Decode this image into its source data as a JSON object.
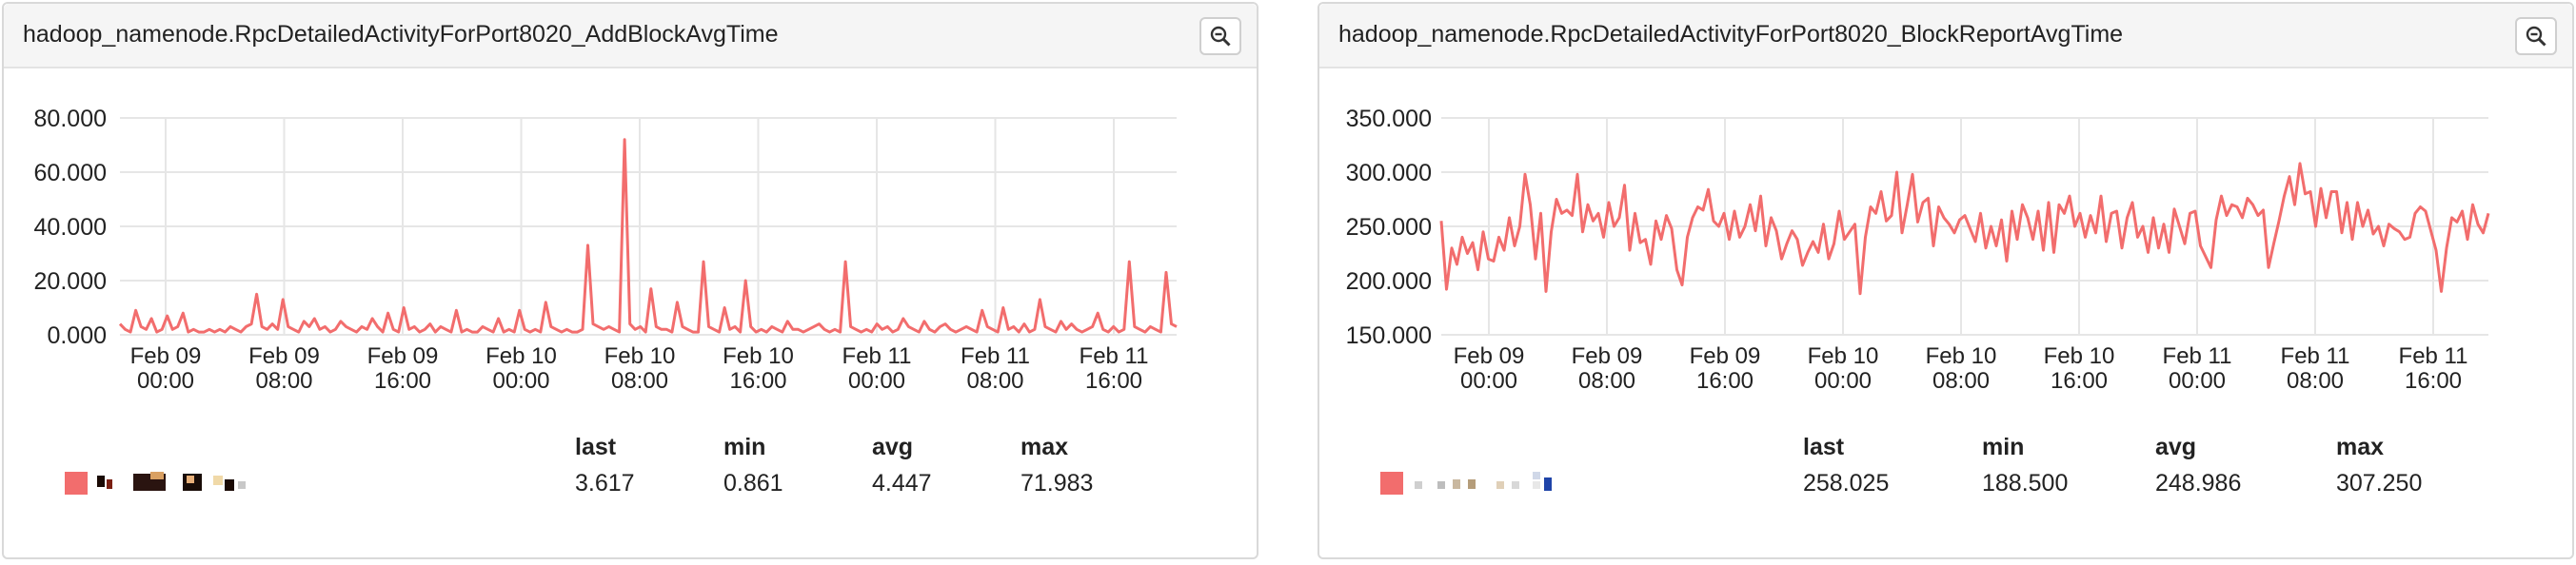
{
  "colors": {
    "series": "#f26d6d",
    "grid": "#e6e6e6",
    "axis_text": "#222222"
  },
  "panels": [
    {
      "title": "hadoop_namenode.RpcDetailedActivityForPort8020_AddBlockAvgTime",
      "zoom_icon": "zoom-out-icon",
      "legend": {
        "masked_label_note": "series name obscured",
        "headers": {
          "last": "last",
          "min": "min",
          "avg": "avg",
          "max": "max"
        },
        "values": {
          "last": "3.617",
          "min": "0.861",
          "avg": "4.447",
          "max": "71.983"
        }
      }
    },
    {
      "title": "hadoop_namenode.RpcDetailedActivityForPort8020_BlockReportAvgTime",
      "zoom_icon": "zoom-out-icon",
      "legend": {
        "masked_label_note": "series name obscured",
        "headers": {
          "last": "last",
          "min": "min",
          "avg": "avg",
          "max": "max"
        },
        "values": {
          "last": "258.025",
          "min": "188.500",
          "avg": "248.986",
          "max": "307.250"
        }
      }
    }
  ],
  "chart_data": [
    {
      "type": "line",
      "title": "hadoop_namenode.RpcDetailedActivityForPort8020_AddBlockAvgTime",
      "xlabel": "",
      "ylabel": "",
      "ylim": [
        0,
        80
      ],
      "y_ticks": [
        "0.000",
        "20.000",
        "40.000",
        "60.000",
        "80.000"
      ],
      "x_ticks": [
        {
          "day": "Feb 09",
          "time": "00:00"
        },
        {
          "day": "Feb 09",
          "time": "08:00"
        },
        {
          "day": "Feb 09",
          "time": "16:00"
        },
        {
          "day": "Feb 10",
          "time": "00:00"
        },
        {
          "day": "Feb 10",
          "time": "08:00"
        },
        {
          "day": "Feb 10",
          "time": "16:00"
        },
        {
          "day": "Feb 11",
          "time": "00:00"
        },
        {
          "day": "Feb 11",
          "time": "08:00"
        },
        {
          "day": "Feb 11",
          "time": "16:00"
        }
      ],
      "grid": true,
      "series": [
        {
          "name": "",
          "values": [
            4,
            2,
            1,
            9,
            3,
            2,
            6,
            1,
            2,
            7,
            2,
            3,
            8,
            1,
            2,
            1,
            1,
            2,
            1,
            2,
            1,
            3,
            2,
            1,
            3,
            4,
            15,
            3,
            2,
            4,
            2,
            13,
            3,
            2,
            1,
            5,
            3,
            6,
            2,
            3,
            1,
            2,
            5,
            3,
            2,
            1,
            3,
            2,
            6,
            3,
            1,
            8,
            2,
            1,
            10,
            2,
            3,
            1,
            2,
            4,
            1,
            3,
            2,
            1,
            9,
            1,
            2,
            1,
            1,
            3,
            2,
            1,
            6,
            1,
            2,
            1,
            9,
            2,
            1,
            2,
            1,
            12,
            3,
            2,
            1,
            2,
            1,
            1,
            2,
            33,
            4,
            3,
            2,
            3,
            2,
            1,
            72,
            4,
            2,
            3,
            1,
            17,
            3,
            2,
            2,
            1,
            12,
            3,
            2,
            1,
            1,
            27,
            3,
            2,
            1,
            10,
            2,
            3,
            1,
            20,
            3,
            1,
            2,
            1,
            3,
            2,
            1,
            5,
            2,
            2,
            1,
            2,
            3,
            4,
            2,
            1,
            2,
            1,
            27,
            3,
            2,
            1,
            2,
            1,
            4,
            2,
            3,
            1,
            2,
            6,
            3,
            2,
            1,
            5,
            2,
            1,
            3,
            4,
            2,
            1,
            2,
            3,
            2,
            1,
            9,
            3,
            2,
            1,
            10,
            2,
            3,
            1,
            4,
            1,
            2,
            13,
            3,
            2,
            1,
            5,
            2,
            4,
            2,
            1,
            2,
            3,
            8,
            2,
            1,
            3,
            1,
            2,
            27,
            3,
            2,
            1,
            3,
            2,
            1,
            23,
            4,
            3
          ]
        }
      ]
    },
    {
      "type": "line",
      "title": "hadoop_namenode.RpcDetailedActivityForPort8020_BlockReportAvgTime",
      "xlabel": "",
      "ylabel": "",
      "ylim": [
        150,
        350
      ],
      "y_ticks": [
        "150.000",
        "200.000",
        "250.000",
        "300.000",
        "350.000"
      ],
      "x_ticks": [
        {
          "day": "Feb 09",
          "time": "00:00"
        },
        {
          "day": "Feb 09",
          "time": "08:00"
        },
        {
          "day": "Feb 09",
          "time": "16:00"
        },
        {
          "day": "Feb 10",
          "time": "00:00"
        },
        {
          "day": "Feb 10",
          "time": "08:00"
        },
        {
          "day": "Feb 10",
          "time": "16:00"
        },
        {
          "day": "Feb 11",
          "time": "00:00"
        },
        {
          "day": "Feb 11",
          "time": "08:00"
        },
        {
          "day": "Feb 11",
          "time": "16:00"
        }
      ],
      "grid": true,
      "series": [
        {
          "name": "",
          "values": [
            255,
            192,
            230,
            215,
            240,
            225,
            235,
            210,
            245,
            220,
            218,
            240,
            228,
            258,
            232,
            250,
            298,
            270,
            220,
            262,
            190,
            245,
            275,
            262,
            265,
            260,
            298,
            245,
            270,
            255,
            262,
            240,
            272,
            250,
            258,
            288,
            228,
            262,
            235,
            238,
            215,
            255,
            238,
            260,
            248,
            210,
            196,
            240,
            258,
            268,
            265,
            284,
            255,
            250,
            262,
            238,
            264,
            240,
            250,
            270,
            246,
            278,
            232,
            258,
            246,
            220,
            234,
            246,
            238,
            214,
            226,
            236,
            226,
            252,
            220,
            234,
            264,
            238,
            245,
            252,
            188,
            240,
            268,
            262,
            282,
            255,
            260,
            300,
            244,
            270,
            298,
            254,
            272,
            276,
            232,
            268,
            258,
            252,
            244,
            256,
            260,
            248,
            236,
            262,
            230,
            250,
            232,
            256,
            218,
            264,
            238,
            270,
            258,
            238,
            264,
            228,
            272,
            226,
            270,
            262,
            278,
            250,
            262,
            240,
            260,
            244,
            278,
            236,
            262,
            264,
            230,
            258,
            272,
            240,
            250,
            226,
            258,
            230,
            252,
            226,
            266,
            250,
            234,
            262,
            264,
            232,
            222,
            212,
            256,
            278,
            260,
            270,
            268,
            258,
            276,
            270,
            260,
            265,
            212,
            234,
            255,
            278,
            296,
            270,
            308,
            280,
            282,
            250,
            285,
            258,
            282,
            282,
            244,
            272,
            238,
            272,
            250,
            265,
            243,
            250,
            232,
            252,
            248,
            245,
            238,
            240,
            262,
            268,
            264,
            246,
            228,
            190,
            230,
            258,
            254,
            264,
            238,
            270,
            252,
            244,
            262
          ]
        }
      ]
    }
  ]
}
